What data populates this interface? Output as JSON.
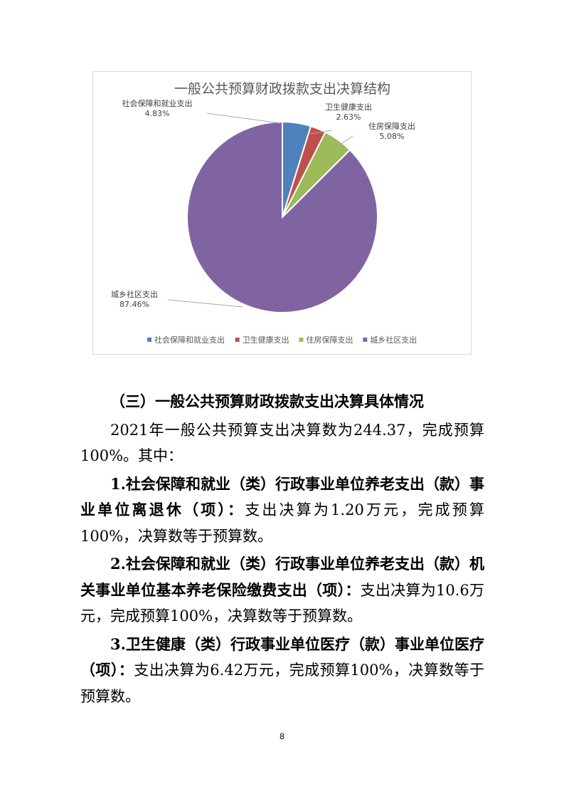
{
  "chart_data": {
    "type": "pie",
    "title": "一般公共预算财政拨款支出决算结构",
    "legend_position": "bottom",
    "slices": [
      {
        "name": "社会保障和就业支出",
        "value": 4.83,
        "label": "4.83%",
        "color": "#4f81bd"
      },
      {
        "name": "卫生健康支出",
        "value": 2.63,
        "label": "2.63%",
        "color": "#c0504d"
      },
      {
        "name": "住房保障支出",
        "value": 5.08,
        "label": "5.08%",
        "color": "#9bbb59"
      },
      {
        "name": "城乡社区支出",
        "value": 87.46,
        "label": "87.46%",
        "color": "#8064a2"
      }
    ]
  },
  "document": {
    "section_heading": "（三）一般公共预算财政拨款支出决算具体情况",
    "intro": "2021年一般公共预算支出决算数为244.37，完成预算100%。其中：",
    "items": [
      {
        "bold": "1.社会保障和就业（类）行政事业单位养老支出（款）事业单位离退休（项）：",
        "text": "支出决算为1.20万元，完成预算100%，决算数等于预算数。"
      },
      {
        "bold": "2.社会保障和就业（类）行政事业单位养老支出（款）机关事业单位基本养老保险缴费支出（项）：",
        "text": "支出决算为10.6万元，完成预算100%，决算数等于预算数。"
      },
      {
        "bold": "3.卫生健康（类）行政事业单位医疗（款）事业单位医疗（项）：",
        "text": "支出决算为6.42万元，完成预算100%，决算数等于预算数。"
      }
    ],
    "page_number": "8"
  }
}
